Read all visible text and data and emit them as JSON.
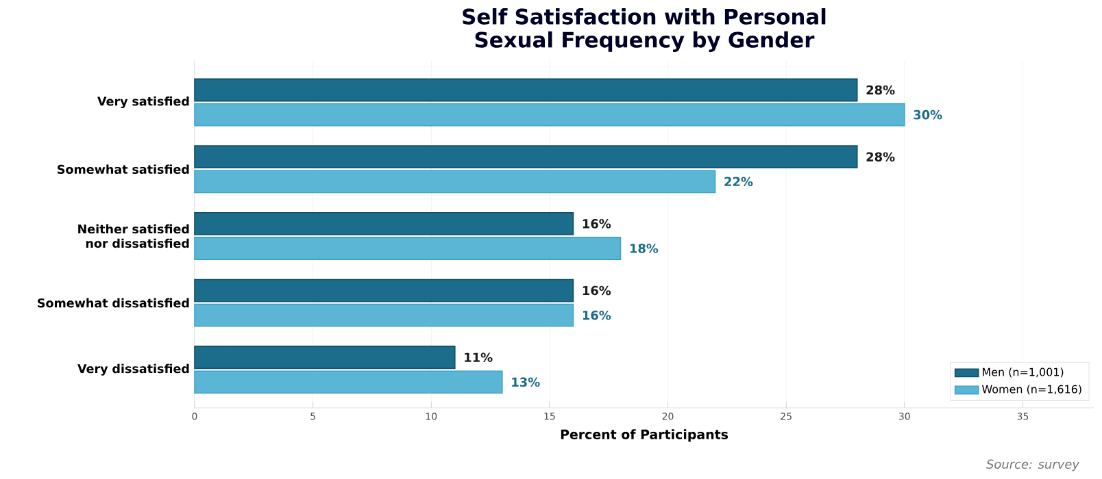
{
  "chart_data": {
    "type": "bar",
    "orientation": "horizontal",
    "title": "Self Satisfaction with Personal Sexual Frequency by Gender",
    "xlabel": "Percent of Participants",
    "categories": [
      "Very satisfied",
      "Somewhat satisfied",
      "Neither satisfied nor dissatisfied",
      "Somewhat dissatisfied",
      "Very dissatisfied"
    ],
    "series": [
      {
        "name": "Men (n=1,001)",
        "color": "#1c6c8c",
        "values": [
          28,
          28,
          16,
          16,
          11
        ],
        "value_labels": [
          "28%",
          "28%",
          "16%",
          "16%",
          "11%"
        ]
      },
      {
        "name": "Women (n=1,616)",
        "color": "#5bb6d6",
        "values": [
          30,
          22,
          18,
          16,
          13
        ],
        "value_labels": [
          "30%",
          "22%",
          "18%",
          "16%",
          "13%"
        ]
      }
    ],
    "xlim": [
      0,
      38
    ],
    "xticks": [
      0,
      5,
      10,
      15,
      20,
      25,
      30,
      35
    ],
    "grid": "x",
    "legend": "bottom right",
    "annotations": [
      "Source: survey"
    ]
  }
}
